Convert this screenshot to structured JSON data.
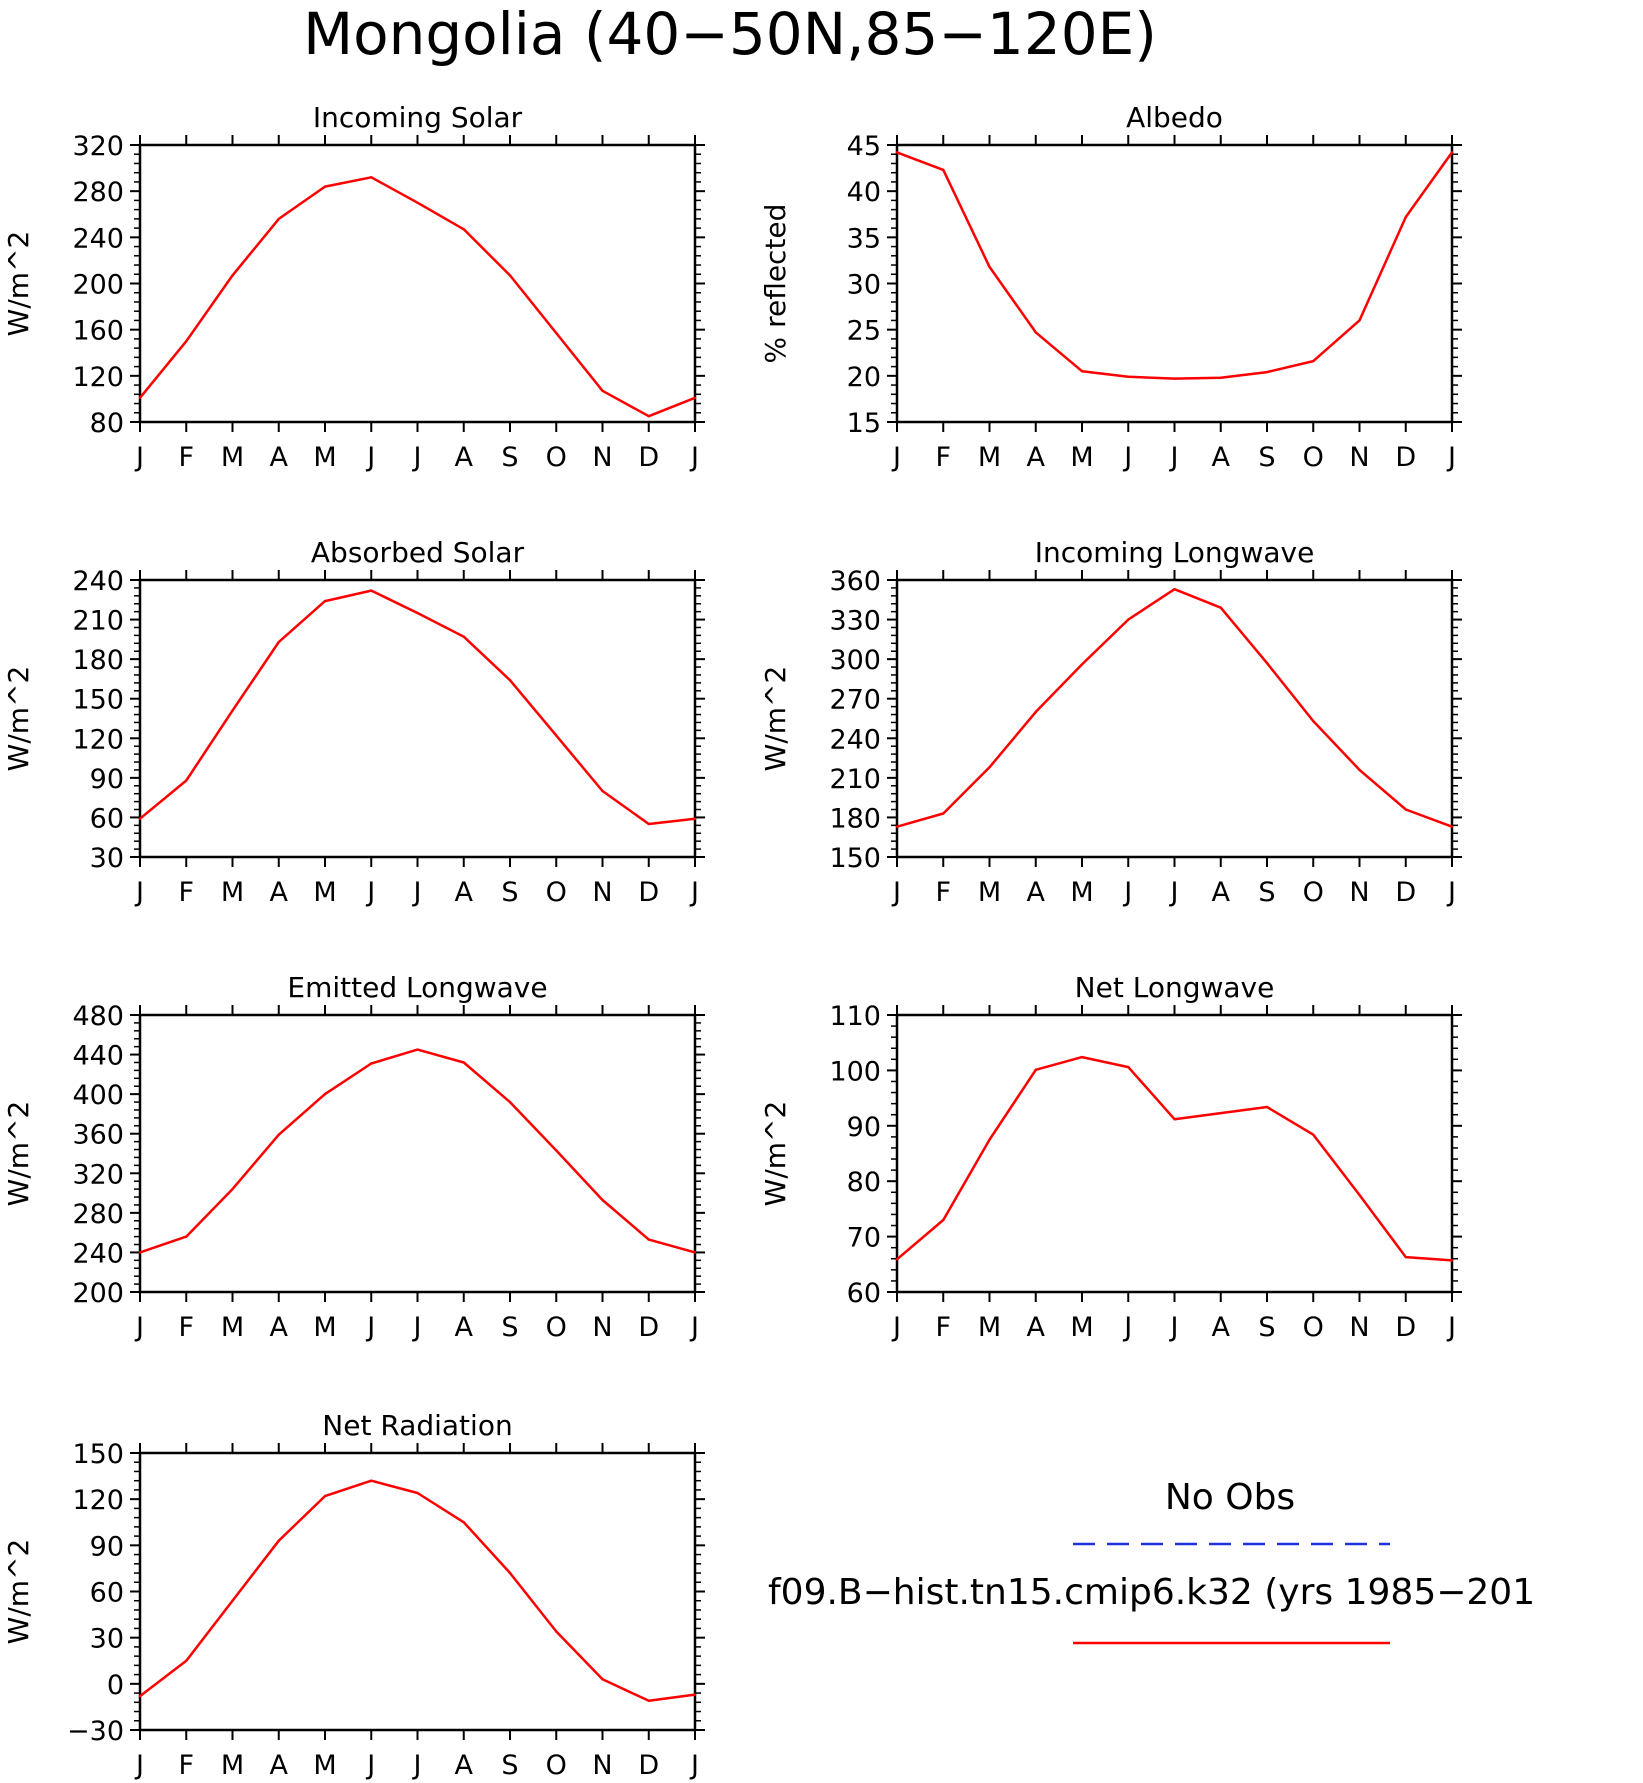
{
  "figure": {
    "title": "Mongolia (40−50N,85−120E)",
    "legend": {
      "entries": [
        {
          "label": "No Obs",
          "color": "#2030e0",
          "dash": true
        },
        {
          "label": "f09.B−hist.tn15.cmip6.k32 (yrs 1985−201",
          "color": "#ff0000",
          "dash": false
        }
      ]
    }
  },
  "chart_data": [
    {
      "type": "line",
      "title": "Incoming Solar",
      "ylabel": "W/m^2",
      "x": [
        "J",
        "F",
        "M",
        "A",
        "M",
        "J",
        "J",
        "A",
        "S",
        "O",
        "N",
        "D",
        "J"
      ],
      "ylim": [
        80,
        320
      ],
      "yticks": [
        80,
        120,
        160,
        200,
        240,
        280,
        320
      ],
      "series": [
        {
          "color": "#ff0000",
          "values": [
            101,
            150,
            207,
            256,
            284,
            292,
            270,
            247,
            207,
            157,
            107,
            85,
            101
          ]
        }
      ]
    },
    {
      "type": "line",
      "title": "Albedo",
      "ylabel": "% reflected",
      "x": [
        "J",
        "F",
        "M",
        "A",
        "M",
        "J",
        "J",
        "A",
        "S",
        "O",
        "N",
        "D",
        "J"
      ],
      "ylim": [
        15,
        45
      ],
      "yticks": [
        15,
        20,
        25,
        30,
        35,
        40,
        45
      ],
      "series": [
        {
          "color": "#ff0000",
          "values": [
            44.2,
            42.3,
            31.8,
            24.7,
            20.5,
            19.9,
            19.7,
            19.8,
            20.4,
            21.6,
            26.0,
            37.2,
            44.2
          ]
        }
      ]
    },
    {
      "type": "line",
      "title": "Absorbed Solar",
      "ylabel": "W/m^2",
      "x": [
        "J",
        "F",
        "M",
        "A",
        "M",
        "J",
        "J",
        "A",
        "S",
        "O",
        "N",
        "D",
        "J"
      ],
      "ylim": [
        30,
        240
      ],
      "yticks": [
        30,
        60,
        90,
        120,
        150,
        180,
        210,
        240
      ],
      "series": [
        {
          "color": "#ff0000",
          "values": [
            59,
            88,
            141,
            193,
            224,
            232,
            215,
            197,
            164,
            122,
            80,
            55,
            59
          ]
        }
      ]
    },
    {
      "type": "line",
      "title": "Incoming Longwave",
      "ylabel": "W/m^2",
      "x": [
        "J",
        "F",
        "M",
        "A",
        "M",
        "J",
        "J",
        "A",
        "S",
        "O",
        "N",
        "D",
        "J"
      ],
      "ylim": [
        150,
        360
      ],
      "yticks": [
        150,
        180,
        210,
        240,
        270,
        300,
        330,
        360
      ],
      "series": [
        {
          "color": "#ff0000",
          "values": [
            173,
            183,
            218,
            260,
            296,
            330,
            353,
            339,
            297,
            253,
            216,
            186,
            173
          ]
        }
      ]
    },
    {
      "type": "line",
      "title": "Emitted Longwave",
      "ylabel": "W/m^2",
      "x": [
        "J",
        "F",
        "M",
        "A",
        "M",
        "J",
        "J",
        "A",
        "S",
        "O",
        "N",
        "D",
        "J"
      ],
      "ylim": [
        200,
        480
      ],
      "yticks": [
        200,
        240,
        280,
        320,
        360,
        400,
        440,
        480
      ],
      "series": [
        {
          "color": "#ff0000",
          "values": [
            240,
            256,
            304,
            359,
            400,
            431,
            445,
            432,
            392,
            343,
            293,
            253,
            240
          ]
        }
      ]
    },
    {
      "type": "line",
      "title": "Net Longwave",
      "ylabel": "W/m^2",
      "x": [
        "J",
        "F",
        "M",
        "A",
        "M",
        "J",
        "J",
        "A",
        "S",
        "O",
        "N",
        "D",
        "J"
      ],
      "ylim": [
        60,
        110
      ],
      "yticks": [
        60,
        70,
        80,
        90,
        100,
        110
      ],
      "series": [
        {
          "color": "#ff0000",
          "values": [
            65.9,
            73.0,
            87.5,
            100.1,
            102.4,
            100.6,
            91.2,
            92.3,
            93.4,
            88.4,
            77.5,
            66.3,
            65.7
          ]
        }
      ]
    },
    {
      "type": "line",
      "title": "Net Radiation",
      "ylabel": "W/m^2",
      "x": [
        "J",
        "F",
        "M",
        "A",
        "M",
        "J",
        "J",
        "A",
        "S",
        "O",
        "N",
        "D",
        "J"
      ],
      "ylim": [
        -30,
        150
      ],
      "yticks": [
        -30,
        0,
        30,
        60,
        90,
        120,
        150
      ],
      "series": [
        {
          "color": "#ff0000",
          "values": [
            -8,
            15,
            54,
            93,
            122,
            132,
            124,
            105,
            72,
            34,
            3,
            -11,
            -7
          ]
        }
      ]
    }
  ]
}
